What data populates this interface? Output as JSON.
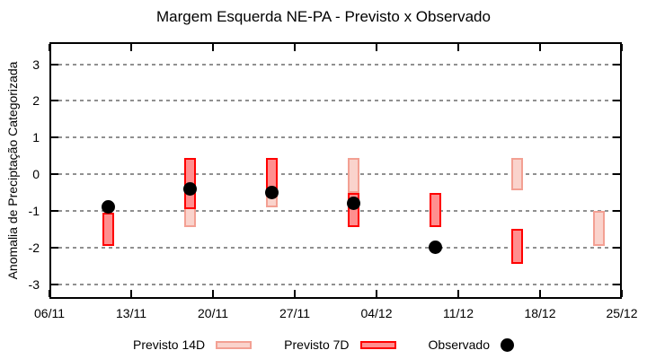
{
  "chart_data": {
    "type": "bar",
    "title": "Margem Esquerda NE-PA - Previsto x Observado",
    "ylabel": "Anomalia de Preciptação Categorizada",
    "xlabel": "",
    "x_tick_labels": [
      "06/11",
      "13/11",
      "20/11",
      "27/11",
      "04/12",
      "11/12",
      "18/12",
      "25/12"
    ],
    "x_tick_days": [
      0,
      7,
      14,
      21,
      28,
      35,
      42,
      49
    ],
    "x_range_days": [
      0,
      49
    ],
    "y_ticks": [
      3,
      2,
      1,
      0,
      -1,
      -2,
      -3
    ],
    "y_range": [
      -3.4,
      3.6
    ],
    "grid": true,
    "legend_position": "bottom",
    "points": [
      {
        "date": "11/11",
        "day": 5,
        "previsto_14d": null,
        "previsto_7d": [
          -1.95,
          -1.05
        ],
        "observado": -0.9
      },
      {
        "date": "18/11",
        "day": 12,
        "previsto_14d": [
          -1.45,
          0.45
        ],
        "previsto_7d": [
          -0.95,
          0.45
        ],
        "observado": -0.4
      },
      {
        "date": "25/11",
        "day": 19,
        "previsto_14d": [
          -0.9,
          0.45
        ],
        "previsto_7d": [
          -0.6,
          0.45
        ],
        "observado": -0.5
      },
      {
        "date": "02/12",
        "day": 26,
        "previsto_14d": [
          -0.5,
          0.45
        ],
        "previsto_7d": [
          -1.45,
          -0.5
        ],
        "observado": -0.8
      },
      {
        "date": "09/12",
        "day": 33,
        "previsto_14d": null,
        "previsto_7d": [
          -1.45,
          -0.5
        ],
        "observado": -2.0
      },
      {
        "date": "16/12",
        "day": 40,
        "previsto_14d": [
          -0.45,
          0.45
        ],
        "previsto_7d": [
          -2.45,
          -1.5
        ],
        "observado": null
      },
      {
        "date": "23/12",
        "day": 47,
        "previsto_14d": [
          -1.95,
          -1.0
        ],
        "previsto_7d": null,
        "observado": null
      }
    ],
    "legend": [
      {
        "label": "Previsto 14D",
        "swatch": "box",
        "fill": "#fad3cc",
        "border": "#f3a093"
      },
      {
        "label": "Previsto 7D",
        "swatch": "box",
        "fill": "#ff8f8f",
        "border": "#ff0000"
      },
      {
        "label": "Observado",
        "swatch": "dot",
        "fill": "#000000"
      }
    ],
    "colors": {
      "previsto_14d_fill": "#fad3cc",
      "previsto_14d_border": "#f3a093",
      "previsto_7d_fill": "#ff8f8f",
      "previsto_7d_border": "#ff0000",
      "observado": "#000000",
      "grid": "#909090",
      "axis": "#000000",
      "background": "#ffffff"
    }
  }
}
